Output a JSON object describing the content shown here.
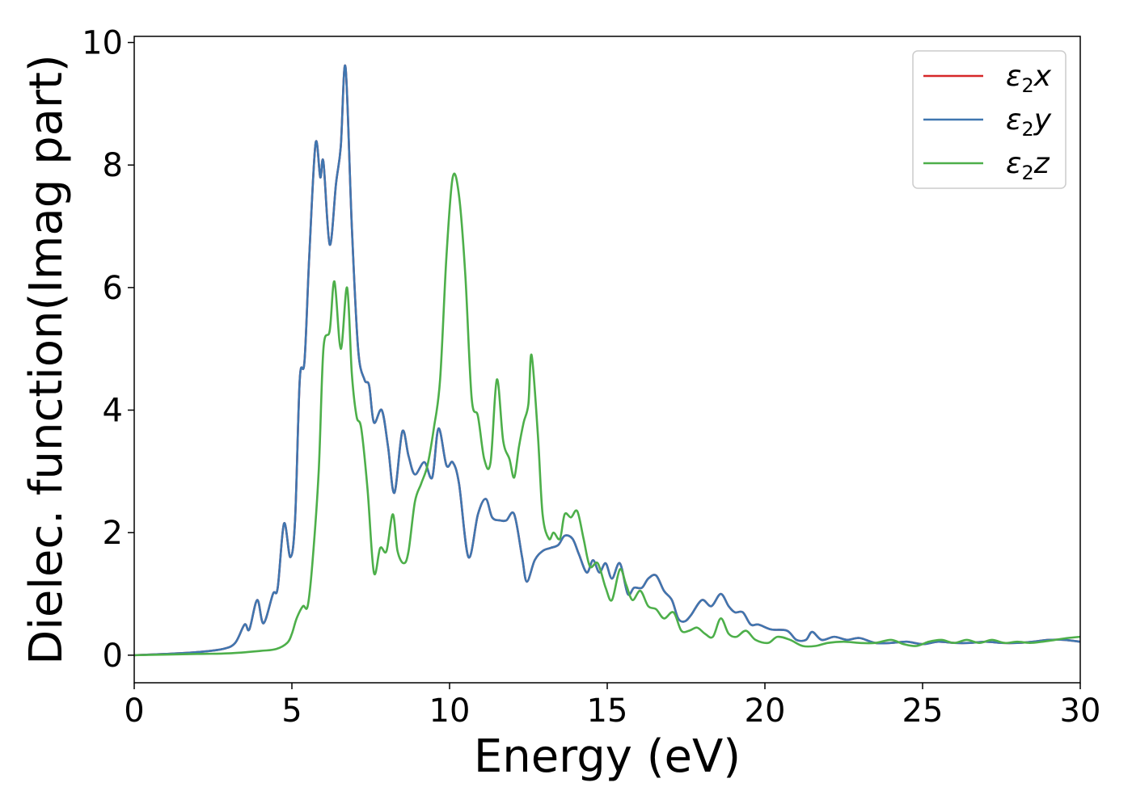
{
  "chart_data": {
    "type": "line",
    "xlabel": "Energy (eV)",
    "ylabel": "Dielec. function(Imag part)",
    "xlim": [
      0,
      30
    ],
    "ylim": [
      -0.45,
      10.1
    ],
    "xticks": [
      0,
      5,
      10,
      15,
      20,
      25,
      30
    ],
    "yticks": [
      0,
      2,
      4,
      6,
      8,
      10
    ],
    "grid": false,
    "legend_position": "top-right",
    "series": [
      {
        "name": "ε₂x",
        "label_main": "ε",
        "label_sub": "2",
        "label_var": "x",
        "color": "#d62728",
        "points": [
          [
            0,
            0
          ],
          [
            1,
            0.02
          ],
          [
            2,
            0.05
          ],
          [
            2.8,
            0.1
          ],
          [
            3.2,
            0.2
          ],
          [
            3.5,
            0.5
          ],
          [
            3.65,
            0.42
          ],
          [
            3.9,
            0.9
          ],
          [
            4.1,
            0.52
          ],
          [
            4.4,
            1.0
          ],
          [
            4.55,
            1.1
          ],
          [
            4.75,
            2.15
          ],
          [
            4.95,
            1.6
          ],
          [
            5.1,
            2.2
          ],
          [
            5.25,
            4.5
          ],
          [
            5.4,
            4.8
          ],
          [
            5.55,
            6.5
          ],
          [
            5.75,
            8.35
          ],
          [
            5.9,
            7.8
          ],
          [
            6.0,
            8.05
          ],
          [
            6.2,
            6.7
          ],
          [
            6.4,
            7.7
          ],
          [
            6.55,
            8.3
          ],
          [
            6.7,
            9.6
          ],
          [
            6.9,
            7.0
          ],
          [
            7.1,
            5.0
          ],
          [
            7.3,
            4.5
          ],
          [
            7.45,
            4.4
          ],
          [
            7.6,
            3.8
          ],
          [
            7.85,
            4.0
          ],
          [
            8.05,
            3.4
          ],
          [
            8.25,
            2.65
          ],
          [
            8.5,
            3.65
          ],
          [
            8.7,
            3.25
          ],
          [
            8.9,
            2.95
          ],
          [
            9.2,
            3.15
          ],
          [
            9.45,
            2.9
          ],
          [
            9.65,
            3.7
          ],
          [
            9.9,
            3.1
          ],
          [
            10.1,
            3.15
          ],
          [
            10.3,
            2.8
          ],
          [
            10.6,
            1.6
          ],
          [
            10.9,
            2.3
          ],
          [
            11.15,
            2.55
          ],
          [
            11.35,
            2.25
          ],
          [
            11.6,
            2.2
          ],
          [
            11.8,
            2.2
          ],
          [
            12.05,
            2.3
          ],
          [
            12.3,
            1.6
          ],
          [
            12.45,
            1.2
          ],
          [
            12.7,
            1.55
          ],
          [
            12.95,
            1.7
          ],
          [
            13.2,
            1.75
          ],
          [
            13.45,
            1.8
          ],
          [
            13.65,
            1.95
          ],
          [
            13.9,
            1.9
          ],
          [
            14.1,
            1.65
          ],
          [
            14.35,
            1.35
          ],
          [
            14.55,
            1.55
          ],
          [
            14.75,
            1.35
          ],
          [
            14.95,
            1.5
          ],
          [
            15.15,
            1.25
          ],
          [
            15.4,
            1.5
          ],
          [
            15.65,
            1.0
          ],
          [
            15.85,
            1.1
          ],
          [
            16.1,
            1.1
          ],
          [
            16.3,
            1.25
          ],
          [
            16.55,
            1.3
          ],
          [
            16.8,
            1.05
          ],
          [
            17.05,
            0.9
          ],
          [
            17.25,
            0.6
          ],
          [
            17.45,
            0.55
          ],
          [
            17.65,
            0.65
          ],
          [
            18.0,
            0.9
          ],
          [
            18.3,
            0.8
          ],
          [
            18.6,
            1.0
          ],
          [
            18.85,
            0.8
          ],
          [
            19.05,
            0.7
          ],
          [
            19.3,
            0.7
          ],
          [
            19.55,
            0.5
          ],
          [
            19.8,
            0.5
          ],
          [
            20.2,
            0.42
          ],
          [
            20.7,
            0.4
          ],
          [
            21.0,
            0.25
          ],
          [
            21.3,
            0.25
          ],
          [
            21.5,
            0.38
          ],
          [
            21.8,
            0.25
          ],
          [
            22.2,
            0.3
          ],
          [
            22.6,
            0.25
          ],
          [
            23.0,
            0.28
          ],
          [
            23.5,
            0.2
          ],
          [
            24.0,
            0.2
          ],
          [
            24.5,
            0.22
          ],
          [
            25.0,
            0.18
          ],
          [
            25.5,
            0.22
          ],
          [
            26.0,
            0.2
          ],
          [
            26.5,
            0.2
          ],
          [
            27.0,
            0.22
          ],
          [
            27.5,
            0.2
          ],
          [
            28.0,
            0.2
          ],
          [
            28.5,
            0.22
          ],
          [
            29.0,
            0.25
          ],
          [
            29.5,
            0.25
          ],
          [
            30.0,
            0.22
          ]
        ]
      },
      {
        "name": "ε₂y",
        "label_main": "ε",
        "label_sub": "2",
        "label_var": "y",
        "color": "#3f76b0",
        "points": [
          [
            0,
            0
          ],
          [
            1,
            0.02
          ],
          [
            2,
            0.05
          ],
          [
            2.8,
            0.1
          ],
          [
            3.2,
            0.2
          ],
          [
            3.5,
            0.5
          ],
          [
            3.65,
            0.42
          ],
          [
            3.9,
            0.9
          ],
          [
            4.1,
            0.52
          ],
          [
            4.4,
            1.0
          ],
          [
            4.55,
            1.1
          ],
          [
            4.75,
            2.15
          ],
          [
            4.95,
            1.6
          ],
          [
            5.1,
            2.2
          ],
          [
            5.25,
            4.5
          ],
          [
            5.4,
            4.8
          ],
          [
            5.55,
            6.5
          ],
          [
            5.75,
            8.35
          ],
          [
            5.9,
            7.8
          ],
          [
            6.0,
            8.05
          ],
          [
            6.2,
            6.7
          ],
          [
            6.4,
            7.7
          ],
          [
            6.55,
            8.3
          ],
          [
            6.7,
            9.6
          ],
          [
            6.9,
            7.0
          ],
          [
            7.1,
            5.0
          ],
          [
            7.3,
            4.5
          ],
          [
            7.45,
            4.4
          ],
          [
            7.6,
            3.8
          ],
          [
            7.85,
            4.0
          ],
          [
            8.05,
            3.4
          ],
          [
            8.25,
            2.65
          ],
          [
            8.5,
            3.65
          ],
          [
            8.7,
            3.25
          ],
          [
            8.9,
            2.95
          ],
          [
            9.2,
            3.15
          ],
          [
            9.45,
            2.9
          ],
          [
            9.65,
            3.7
          ],
          [
            9.9,
            3.1
          ],
          [
            10.1,
            3.15
          ],
          [
            10.3,
            2.8
          ],
          [
            10.6,
            1.6
          ],
          [
            10.9,
            2.3
          ],
          [
            11.15,
            2.55
          ],
          [
            11.35,
            2.25
          ],
          [
            11.6,
            2.2
          ],
          [
            11.8,
            2.2
          ],
          [
            12.05,
            2.3
          ],
          [
            12.3,
            1.6
          ],
          [
            12.45,
            1.2
          ],
          [
            12.7,
            1.55
          ],
          [
            12.95,
            1.7
          ],
          [
            13.2,
            1.75
          ],
          [
            13.45,
            1.8
          ],
          [
            13.65,
            1.95
          ],
          [
            13.9,
            1.9
          ],
          [
            14.1,
            1.65
          ],
          [
            14.35,
            1.35
          ],
          [
            14.55,
            1.55
          ],
          [
            14.75,
            1.35
          ],
          [
            14.95,
            1.5
          ],
          [
            15.15,
            1.25
          ],
          [
            15.4,
            1.5
          ],
          [
            15.65,
            1.0
          ],
          [
            15.85,
            1.1
          ],
          [
            16.1,
            1.1
          ],
          [
            16.3,
            1.25
          ],
          [
            16.55,
            1.3
          ],
          [
            16.8,
            1.05
          ],
          [
            17.05,
            0.9
          ],
          [
            17.25,
            0.6
          ],
          [
            17.45,
            0.55
          ],
          [
            17.65,
            0.65
          ],
          [
            18.0,
            0.9
          ],
          [
            18.3,
            0.8
          ],
          [
            18.6,
            1.0
          ],
          [
            18.85,
            0.8
          ],
          [
            19.05,
            0.7
          ],
          [
            19.3,
            0.7
          ],
          [
            19.55,
            0.5
          ],
          [
            19.8,
            0.5
          ],
          [
            20.2,
            0.42
          ],
          [
            20.7,
            0.4
          ],
          [
            21.0,
            0.25
          ],
          [
            21.3,
            0.25
          ],
          [
            21.5,
            0.38
          ],
          [
            21.8,
            0.25
          ],
          [
            22.2,
            0.3
          ],
          [
            22.6,
            0.25
          ],
          [
            23.0,
            0.28
          ],
          [
            23.5,
            0.2
          ],
          [
            24.0,
            0.2
          ],
          [
            24.5,
            0.22
          ],
          [
            25.0,
            0.18
          ],
          [
            25.5,
            0.22
          ],
          [
            26.0,
            0.2
          ],
          [
            26.5,
            0.2
          ],
          [
            27.0,
            0.22
          ],
          [
            27.5,
            0.2
          ],
          [
            28.0,
            0.2
          ],
          [
            28.5,
            0.22
          ],
          [
            29.0,
            0.25
          ],
          [
            29.5,
            0.25
          ],
          [
            30.0,
            0.22
          ]
        ]
      },
      {
        "name": "ε₂z",
        "label_main": "ε",
        "label_sub": "2",
        "label_var": "z",
        "color": "#4daf4a",
        "points": [
          [
            0,
            0
          ],
          [
            2,
            0.02
          ],
          [
            3,
            0.03
          ],
          [
            4,
            0.07
          ],
          [
            4.5,
            0.1
          ],
          [
            4.85,
            0.2
          ],
          [
            5.0,
            0.35
          ],
          [
            5.15,
            0.6
          ],
          [
            5.35,
            0.8
          ],
          [
            5.5,
            0.8
          ],
          [
            5.65,
            1.5
          ],
          [
            5.85,
            3.0
          ],
          [
            6.0,
            5.0
          ],
          [
            6.2,
            5.3
          ],
          [
            6.35,
            6.1
          ],
          [
            6.55,
            5.0
          ],
          [
            6.75,
            6.0
          ],
          [
            6.9,
            4.6
          ],
          [
            7.05,
            3.9
          ],
          [
            7.2,
            3.7
          ],
          [
            7.4,
            2.7
          ],
          [
            7.6,
            1.35
          ],
          [
            7.8,
            1.75
          ],
          [
            8.0,
            1.7
          ],
          [
            8.2,
            2.3
          ],
          [
            8.35,
            1.7
          ],
          [
            8.55,
            1.5
          ],
          [
            8.7,
            1.7
          ],
          [
            8.9,
            2.5
          ],
          [
            9.1,
            2.8
          ],
          [
            9.3,
            3.1
          ],
          [
            9.5,
            3.7
          ],
          [
            9.7,
            4.5
          ],
          [
            9.9,
            6.5
          ],
          [
            10.1,
            7.8
          ],
          [
            10.3,
            7.5
          ],
          [
            10.5,
            6.2
          ],
          [
            10.7,
            4.2
          ],
          [
            10.9,
            3.9
          ],
          [
            11.1,
            3.2
          ],
          [
            11.3,
            3.15
          ],
          [
            11.5,
            4.5
          ],
          [
            11.7,
            3.5
          ],
          [
            11.9,
            3.2
          ],
          [
            12.05,
            2.9
          ],
          [
            12.2,
            3.4
          ],
          [
            12.35,
            3.8
          ],
          [
            12.5,
            4.1
          ],
          [
            12.6,
            4.9
          ],
          [
            12.8,
            3.6
          ],
          [
            12.95,
            2.3
          ],
          [
            13.15,
            1.9
          ],
          [
            13.3,
            2.0
          ],
          [
            13.5,
            1.9
          ],
          [
            13.65,
            2.3
          ],
          [
            13.85,
            2.25
          ],
          [
            14.05,
            2.35
          ],
          [
            14.25,
            1.9
          ],
          [
            14.45,
            1.45
          ],
          [
            14.7,
            1.5
          ],
          [
            14.95,
            1.1
          ],
          [
            15.15,
            0.9
          ],
          [
            15.4,
            1.4
          ],
          [
            15.6,
            1.15
          ],
          [
            15.8,
            0.9
          ],
          [
            16.05,
            1.05
          ],
          [
            16.3,
            0.8
          ],
          [
            16.55,
            0.75
          ],
          [
            16.8,
            0.6
          ],
          [
            17.1,
            0.7
          ],
          [
            17.35,
            0.4
          ],
          [
            17.6,
            0.4
          ],
          [
            17.85,
            0.45
          ],
          [
            18.1,
            0.35
          ],
          [
            18.35,
            0.3
          ],
          [
            18.6,
            0.6
          ],
          [
            18.85,
            0.35
          ],
          [
            19.1,
            0.3
          ],
          [
            19.4,
            0.4
          ],
          [
            19.7,
            0.25
          ],
          [
            20.1,
            0.2
          ],
          [
            20.4,
            0.3
          ],
          [
            20.8,
            0.25
          ],
          [
            21.2,
            0.15
          ],
          [
            21.6,
            0.15
          ],
          [
            22.0,
            0.2
          ],
          [
            22.5,
            0.22
          ],
          [
            23.0,
            0.2
          ],
          [
            23.5,
            0.2
          ],
          [
            24.0,
            0.25
          ],
          [
            24.4,
            0.18
          ],
          [
            24.8,
            0.15
          ],
          [
            25.2,
            0.22
          ],
          [
            25.6,
            0.25
          ],
          [
            26.0,
            0.2
          ],
          [
            26.4,
            0.25
          ],
          [
            26.8,
            0.2
          ],
          [
            27.2,
            0.25
          ],
          [
            27.6,
            0.2
          ],
          [
            28.0,
            0.22
          ],
          [
            28.4,
            0.2
          ],
          [
            28.8,
            0.22
          ],
          [
            29.2,
            0.25
          ],
          [
            29.6,
            0.28
          ],
          [
            30.0,
            0.3
          ]
        ]
      }
    ]
  }
}
